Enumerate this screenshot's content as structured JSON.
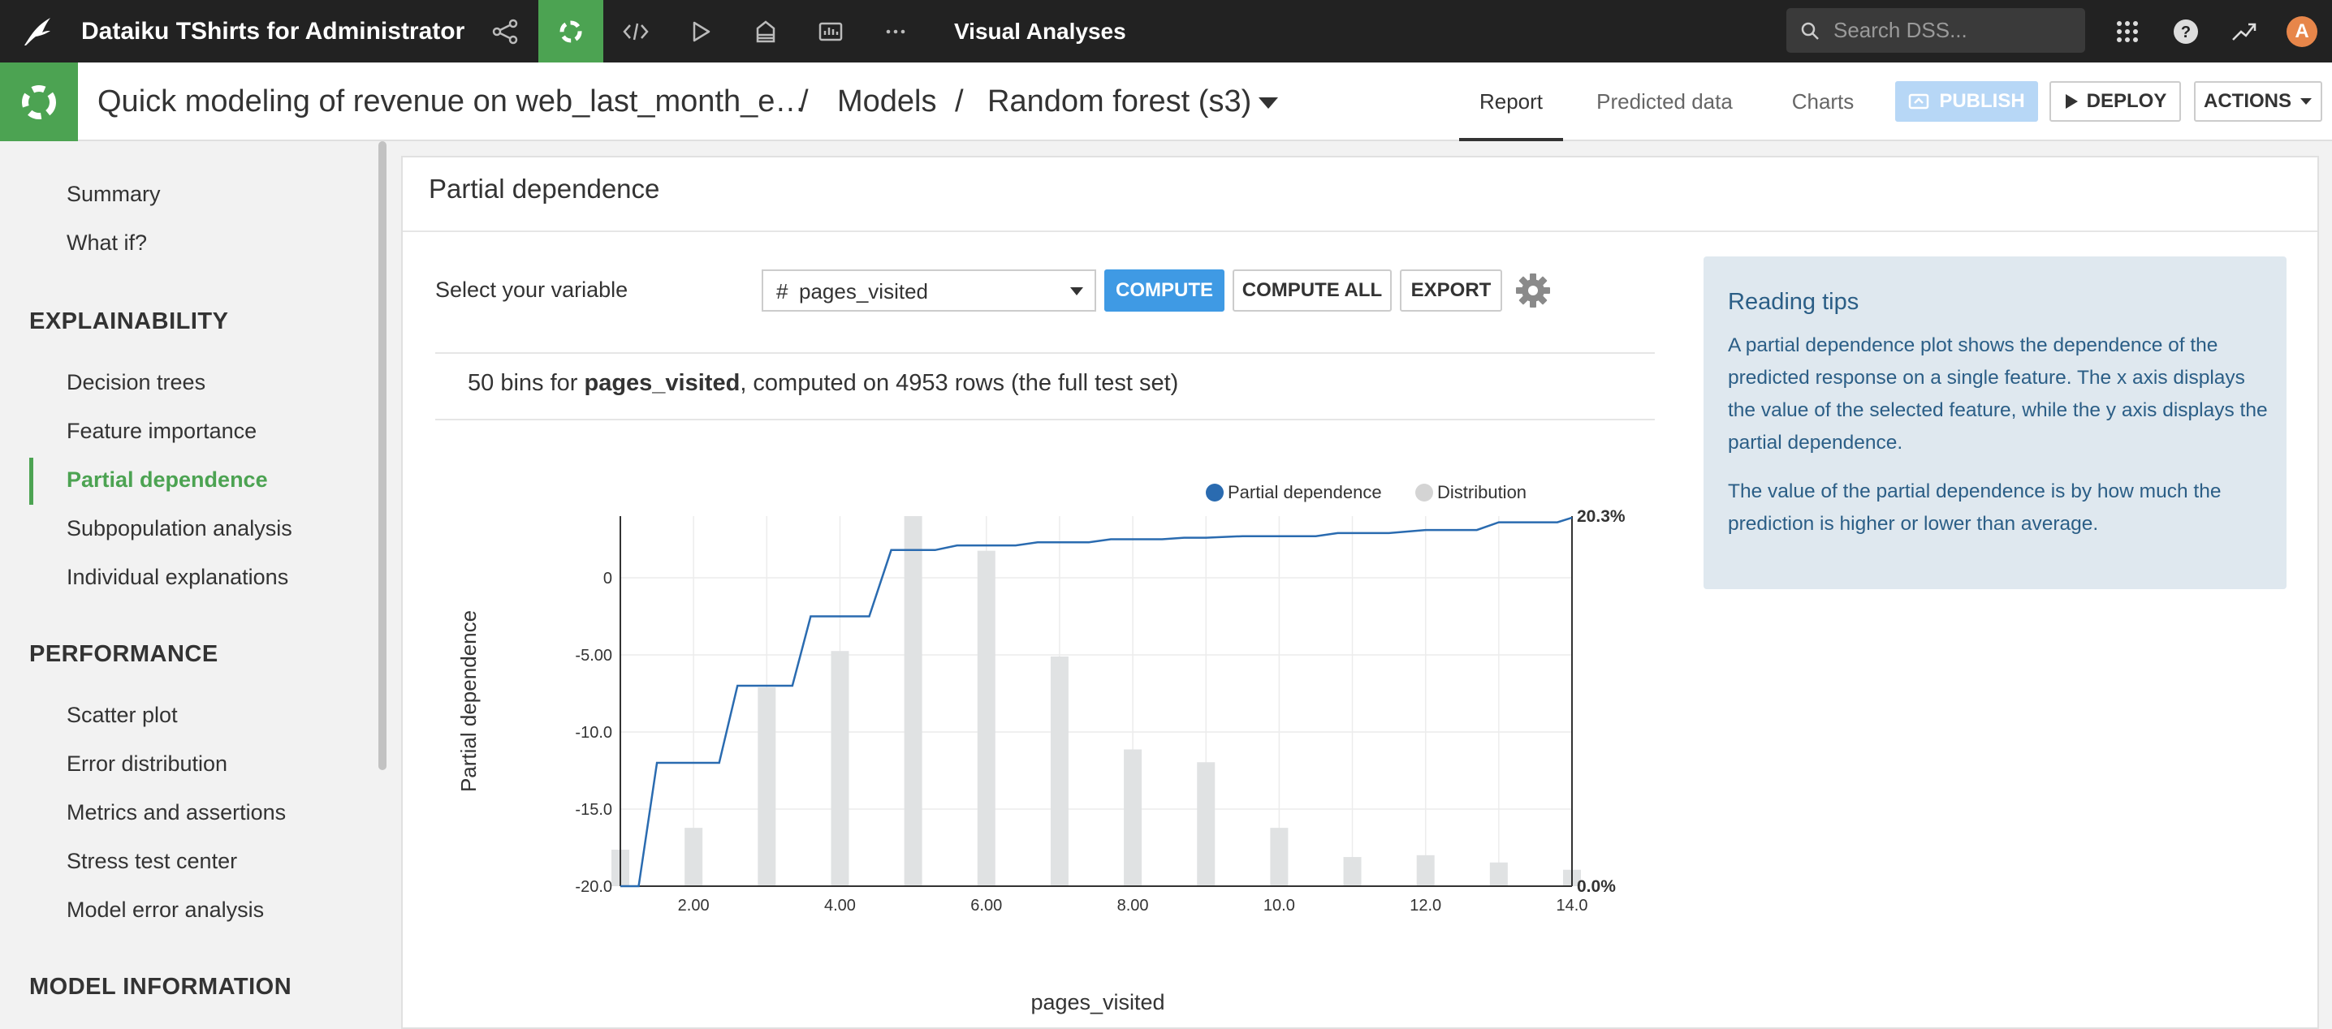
{
  "topbar": {
    "project_title": "Dataiku TShirts for Administrator",
    "section": "Visual Analyses",
    "search_placeholder": "Search DSS...",
    "avatar_letter": "A",
    "nav_icons": [
      "flow-icon",
      "lab-icon",
      "code-icon",
      "run-icon",
      "deploy-icon",
      "dashboard-icon",
      "more-icon"
    ],
    "right_icons": [
      "apps-grid-icon",
      "help-icon",
      "activity-icon"
    ]
  },
  "header": {
    "breadcrumb_analysis": "Quick modeling of revenue on web_last_month_e…",
    "sep1": "/",
    "breadcrumb_models": "Models",
    "sep2": "/",
    "breadcrumb_model": "Random forest (s3)",
    "tabs": [
      "Report",
      "Predicted data",
      "Charts"
    ],
    "active_tab": "Report",
    "publish_label": "PUBLISH",
    "deploy_label": "DEPLOY",
    "actions_label": "ACTIONS"
  },
  "sidebar": {
    "top_items": [
      "Summary",
      "What if?"
    ],
    "explainability": {
      "title": "EXPLAINABILITY",
      "items": [
        "Decision trees",
        "Feature importance",
        "Partial dependence",
        "Subpopulation analysis",
        "Individual explanations"
      ]
    },
    "performance": {
      "title": "PERFORMANCE",
      "items": [
        "Scatter plot",
        "Error distribution",
        "Metrics and assertions",
        "Stress test center",
        "Model error analysis"
      ]
    },
    "model_info_title": "MODEL INFORMATION",
    "active_item": "Partial dependence"
  },
  "main": {
    "title": "Partial dependence",
    "select_label": "Select your variable",
    "variable_prefix": "#",
    "variable": "pages_visited",
    "compute_label": "COMPUTE",
    "compute_all_label": "COMPUTE ALL",
    "export_label": "EXPORT",
    "info_prefix": "50 bins for ",
    "info_variable": "pages_visited",
    "info_suffix": ", computed on 4953 rows (the full test set)"
  },
  "tips": {
    "title": "Reading tips",
    "p1": "A partial dependence plot shows the dependence of the predicted response on a single feature. The x axis displays the value of the selected feature, while the y axis displays the partial dependence.",
    "p2": "The value of the partial dependence is by how much the prediction is higher or lower than average."
  },
  "chart_data": {
    "type": "line",
    "title": "",
    "xlabel": "pages_visited",
    "ylabel": "Partial dependence",
    "xlim": [
      1,
      14
    ],
    "ylim": [
      -20,
      4
    ],
    "x_ticks": [
      2,
      4,
      6,
      8,
      10,
      12,
      14
    ],
    "x_tick_labels": [
      "2.00",
      "4.00",
      "6.00",
      "8.00",
      "10.0",
      "12.0",
      "14.0"
    ],
    "y_ticks": [
      -20,
      -15,
      -10,
      -5,
      0
    ],
    "y_tick_labels": [
      "-20.0",
      "-15.0",
      "-10.0",
      "-5.00",
      "0"
    ],
    "y2_labels": {
      "top": "20.3%",
      "bottom": "0.0%"
    },
    "legend": [
      "Partial dependence",
      "Distribution"
    ],
    "legend_position": "top-right",
    "colors": {
      "line": "#2a6bb0",
      "bars": "#e0e2e3",
      "legend_distribution": "#d4d4d4"
    },
    "series": [
      {
        "name": "Partial dependence",
        "x": [
          1.0,
          1.25,
          1.5,
          2.0,
          2.35,
          2.6,
          3.0,
          3.35,
          3.6,
          4.0,
          4.4,
          4.7,
          5.0,
          5.3,
          5.6,
          6.0,
          6.4,
          6.7,
          7.0,
          7.4,
          7.7,
          8.0,
          8.4,
          8.7,
          9.0,
          9.5,
          10.0,
          10.5,
          10.8,
          11.0,
          11.5,
          12.0,
          12.4,
          12.7,
          13.0,
          13.5,
          13.8,
          14.0
        ],
        "y": [
          -20.0,
          -20.0,
          -12.0,
          -12.0,
          -12.0,
          -7.0,
          -7.0,
          -7.0,
          -2.5,
          -2.5,
          -2.5,
          1.8,
          1.8,
          1.8,
          2.1,
          2.1,
          2.1,
          2.3,
          2.3,
          2.3,
          2.5,
          2.5,
          2.5,
          2.6,
          2.6,
          2.7,
          2.7,
          2.7,
          2.9,
          2.9,
          2.9,
          3.1,
          3.1,
          3.1,
          3.6,
          3.6,
          3.6,
          3.9
        ]
      },
      {
        "name": "Distribution",
        "x": [
          1,
          2,
          3,
          4,
          5,
          6,
          7,
          8,
          9,
          10,
          11,
          12,
          13,
          14
        ],
        "values_percent": [
          2.0,
          3.2,
          10.9,
          12.9,
          20.3,
          18.4,
          12.6,
          7.5,
          6.8,
          3.2,
          1.6,
          1.7,
          1.3,
          0.9
        ]
      }
    ]
  }
}
